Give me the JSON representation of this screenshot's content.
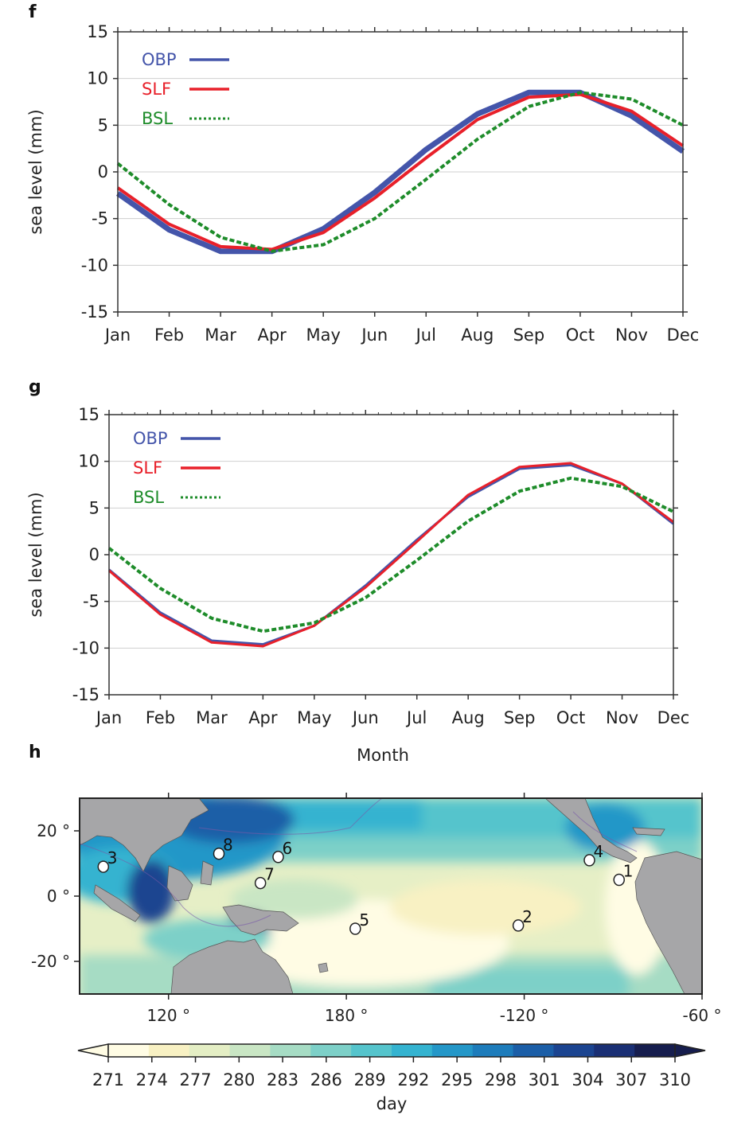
{
  "chart_data": [
    {
      "panel_label": "f",
      "type": "line",
      "categories": [
        "Jan",
        "Feb",
        "Mar",
        "Apr",
        "May",
        "Jun",
        "Jul",
        "Aug",
        "Sep",
        "Oct",
        "Nov",
        "Dec"
      ],
      "ylabel": "sea level (mm)",
      "ylim": [
        -15,
        15
      ],
      "yticks": [
        "15",
        "10",
        "5",
        "0",
        "-5",
        "-10",
        "-15"
      ],
      "legend_position": "top-left",
      "series": [
        {
          "name": "OBP",
          "color": "#4455aa",
          "values": [
            -2.3,
            -6.2,
            -8.5,
            -8.5,
            -6.1,
            -2.2,
            2.4,
            6.2,
            8.5,
            8.5,
            6.0,
            2.2
          ]
        },
        {
          "name": "SLF",
          "color": "#e8202a",
          "values": [
            -1.7,
            -5.6,
            -8.0,
            -8.3,
            -6.5,
            -2.8,
            1.5,
            5.6,
            8.0,
            8.3,
            6.5,
            2.8
          ]
        },
        {
          "name": "BSL",
          "color": "#1e8c2a",
          "values": [
            0.9,
            -3.5,
            -7.0,
            -8.5,
            -7.8,
            -5.0,
            -0.8,
            3.5,
            7.0,
            8.5,
            7.8,
            5.0
          ]
        }
      ]
    },
    {
      "panel_label": "g",
      "type": "line",
      "categories": [
        "Jan",
        "Feb",
        "Mar",
        "Apr",
        "May",
        "Jun",
        "Jul",
        "Aug",
        "Sep",
        "Oct",
        "Nov",
        "Dec"
      ],
      "xlabel": "Month",
      "ylabel": "sea level (mm)",
      "ylim": [
        -15,
        15
      ],
      "yticks": [
        "15",
        "10",
        "5",
        "0",
        "-5",
        "-10",
        "-15"
      ],
      "legend_position": "top-left",
      "series": [
        {
          "name": "OBP",
          "color": "#4455aa",
          "values": [
            -1.6,
            -6.2,
            -9.2,
            -9.6,
            -7.6,
            -3.3,
            1.6,
            6.2,
            9.2,
            9.6,
            7.6,
            3.3
          ]
        },
        {
          "name": "SLF",
          "color": "#e8202a",
          "values": [
            -1.7,
            -6.4,
            -9.4,
            -9.8,
            -7.6,
            -3.5,
            1.4,
            6.4,
            9.4,
            9.8,
            7.6,
            3.5
          ]
        },
        {
          "name": "BSL",
          "color": "#1e8c2a",
          "values": [
            0.7,
            -3.6,
            -6.8,
            -8.2,
            -7.3,
            -4.6,
            -0.6,
            3.6,
            6.8,
            8.2,
            7.3,
            4.6
          ]
        }
      ]
    },
    {
      "panel_label": "h",
      "type": "heatmap",
      "x_ticks": [
        "120 °",
        "180 °",
        "-120 °",
        "-60 °"
      ],
      "y_ticks": [
        "20 °",
        "0 °",
        "-20 °"
      ],
      "xlim": [
        90,
        300
      ],
      "ylim": [
        -30,
        30
      ],
      "colorbar": {
        "label": "day",
        "ticks": [
          "271",
          "274",
          "277",
          "280",
          "283",
          "286",
          "289",
          "292",
          "295",
          "298",
          "301",
          "304",
          "307",
          "310"
        ],
        "colors": [
          "#fffce4",
          "#f8f1c3",
          "#e4eec4",
          "#c9e6c4",
          "#a6dcc4",
          "#7dd0c8",
          "#55c4cc",
          "#34b3d0",
          "#2497c8",
          "#1d7cbb",
          "#1b5ea7",
          "#1b4490",
          "#1a2f74",
          "#161d4e"
        ]
      },
      "stations": [
        {
          "label": "1",
          "lon": 272,
          "lat": 5
        },
        {
          "label": "2",
          "lon": 238,
          "lat": -9
        },
        {
          "label": "3",
          "lon": 98,
          "lat": 9
        },
        {
          "label": "4",
          "lon": 262,
          "lat": 11
        },
        {
          "label": "5",
          "lon": 183,
          "lat": -10
        },
        {
          "label": "6",
          "lon": 157,
          "lat": 12
        },
        {
          "label": "7",
          "lon": 151,
          "lat": 4
        },
        {
          "label": "8",
          "lon": 137,
          "lat": 13
        }
      ]
    }
  ]
}
